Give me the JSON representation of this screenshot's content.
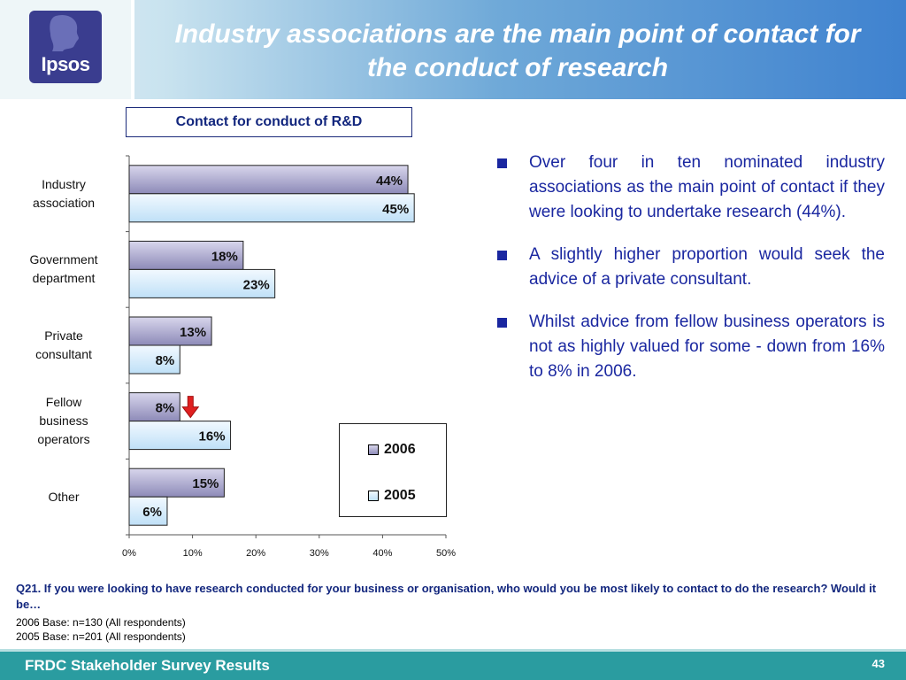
{
  "header": {
    "title": "Industry associations are the main point of contact for the conduct of research",
    "logo_text": "Ipsos"
  },
  "chart_data": {
    "type": "bar",
    "orientation": "horizontal",
    "title": "Contact for conduct of R&D",
    "categories": [
      "Industry association",
      "Government department",
      "Private consultant",
      "Fellow business operators",
      "Other"
    ],
    "series": [
      {
        "name": "2006",
        "values": [
          44,
          18,
          13,
          8,
          15
        ],
        "labels": [
          "44%",
          "18%",
          "13%",
          "8%",
          "15%"
        ],
        "color": "#8d8ab8"
      },
      {
        "name": "2005",
        "values": [
          45,
          23,
          8,
          16,
          6
        ],
        "labels": [
          "45%",
          "23%",
          "8%",
          "16%",
          "6%"
        ],
        "color": "#bfe0f7"
      }
    ],
    "xlim": [
      0,
      50
    ],
    "xticks": [
      "0%",
      "10%",
      "20%",
      "30%",
      "40%",
      "50%"
    ],
    "xlabel": "",
    "ylabel": "",
    "grid": false,
    "legend_position": "bottom-right",
    "annotation": {
      "type": "down-arrow",
      "category": "Fellow business operators",
      "color": "#e02020"
    }
  },
  "bullets": [
    "Over four in ten nominated industry associations as the main point of contact if they were looking to undertake research (44%).",
    "A slightly higher proportion would seek the advice of a private consultant.",
    "Whilst advice from fellow business operators is not as highly valued for some - down from 16% to 8% in 2006."
  ],
  "question": "Q21. If you were looking to have research conducted for your business or organisation, who would you be most likely to contact to do the research? Would it be…",
  "base_2006": "2006 Base: n=130 (All respondents)",
  "base_2005": "2005 Base: n=201 (All respondents)",
  "footer": {
    "title": "FRDC Stakeholder Survey Results",
    "page": "43"
  }
}
